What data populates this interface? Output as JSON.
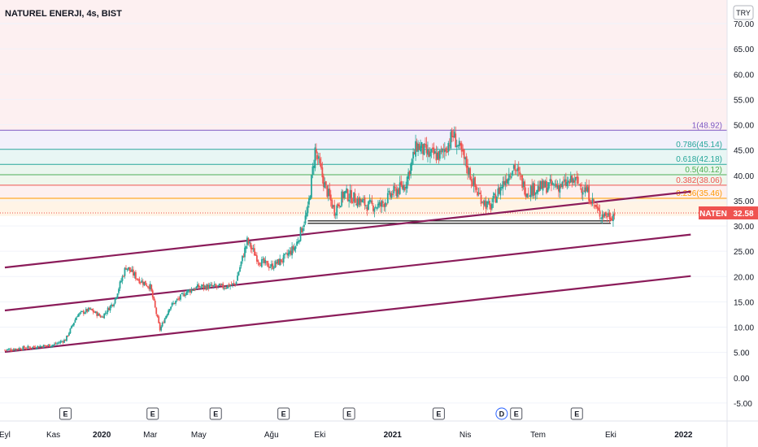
{
  "header": {
    "title": "NATUREL ENERJI, 4s, BIST",
    "currency": "TRY"
  },
  "colors": {
    "up": "#26a69a",
    "down": "#ef5350",
    "channel": "#8b1c5a",
    "fib_1": "#7e57c2",
    "fib_786": "#26a69a",
    "fib_618": "#26a69a",
    "fib_5": "#4caf50",
    "fib_382": "#ef5350",
    "fib_236": "#ff9800",
    "support": "#000000"
  },
  "chart_data": {
    "type": "candlestick",
    "symbol": "NATEN",
    "current_price": 32.58,
    "current_label": "32.58",
    "ylim": [
      -7.5,
      73
    ],
    "yticks": [
      "70.00",
      "65.00",
      "60.00",
      "55.00",
      "50.00",
      "45.00",
      "40.00",
      "35.00",
      "30.00",
      "25.00",
      "20.00",
      "15.00",
      "10.00",
      "5.00",
      "0.00",
      "-5.00"
    ],
    "ytick_values": [
      70,
      65,
      60,
      55,
      50,
      45,
      40,
      35,
      30,
      25,
      20,
      15,
      10,
      5,
      0,
      -5
    ],
    "xticks": [
      {
        "label": "Eyl",
        "month": 0,
        "bold": false
      },
      {
        "label": "Kas",
        "month": 2,
        "bold": false
      },
      {
        "label": "2020",
        "month": 4,
        "bold": true
      },
      {
        "label": "Mar",
        "month": 6,
        "bold": false
      },
      {
        "label": "May",
        "month": 8,
        "bold": false
      },
      {
        "label": "Ağu",
        "month": 11,
        "bold": false
      },
      {
        "label": "Eki",
        "month": 13,
        "bold": false
      },
      {
        "label": "2021",
        "month": 16,
        "bold": true
      },
      {
        "label": "Nis",
        "month": 19,
        "bold": false
      },
      {
        "label": "Tem",
        "month": 22,
        "bold": false
      },
      {
        "label": "Eki",
        "month": 25,
        "bold": false
      },
      {
        "label": "2022",
        "month": 28,
        "bold": true
      }
    ],
    "series_close": [
      [
        0,
        5.5
      ],
      [
        1,
        6.0
      ],
      [
        2,
        6.5
      ],
      [
        2.5,
        7.5
      ],
      [
        3,
        12.5
      ],
      [
        3.5,
        13.5
      ],
      [
        4,
        12.0
      ],
      [
        4.5,
        15.0
      ],
      [
        5,
        22.0
      ],
      [
        5.5,
        19.5
      ],
      [
        6,
        18.0
      ],
      [
        6.4,
        9.5
      ],
      [
        6.8,
        14.0
      ],
      [
        7.5,
        17.0
      ],
      [
        8,
        18.0
      ],
      [
        9,
        18.0
      ],
      [
        9.5,
        18.5
      ],
      [
        10,
        27.0
      ],
      [
        10.5,
        23.0
      ],
      [
        11,
        22.0
      ],
      [
        11.5,
        23.5
      ],
      [
        12,
        26.0
      ],
      [
        12.5,
        33.0
      ],
      [
        12.8,
        45.0
      ],
      [
        13.2,
        38.0
      ],
      [
        13.6,
        33.0
      ],
      [
        14,
        36.5
      ],
      [
        15,
        34.0
      ],
      [
        15.5,
        34.0
      ],
      [
        16,
        36.5
      ],
      [
        16.5,
        38.0
      ],
      [
        17,
        46.0
      ],
      [
        17.5,
        44.0
      ],
      [
        18,
        44.0
      ],
      [
        18.5,
        48.0
      ],
      [
        19,
        42.5
      ],
      [
        19.5,
        36.5
      ],
      [
        20,
        33.5
      ],
      [
        20.5,
        38.0
      ],
      [
        21,
        42.0
      ],
      [
        21.5,
        37.0
      ],
      [
        22,
        37.5
      ],
      [
        22.5,
        38.0
      ],
      [
        23,
        38.0
      ],
      [
        23.5,
        39.0
      ],
      [
        24,
        37.0
      ],
      [
        24.5,
        32.5
      ],
      [
        25,
        32.0
      ],
      [
        25.2,
        32.58
      ]
    ],
    "fibonacci": [
      {
        "level": "1",
        "value": 48.92,
        "label": "1(48.92)",
        "color_key": "fib_1"
      },
      {
        "level": "0.786",
        "value": 45.14,
        "label": "0.786(45.14)",
        "color_key": "fib_786"
      },
      {
        "level": "0.618",
        "value": 42.18,
        "label": "0.618(42.18)",
        "color_key": "fib_618"
      },
      {
        "level": "0.5",
        "value": 40.12,
        "label": "0.5(40.12)",
        "color_key": "fib_5"
      },
      {
        "level": "0.382",
        "value": 38.06,
        "label": "0.382(38.06)",
        "color_key": "fib_382"
      },
      {
        "level": "0.236",
        "value": 35.46,
        "label": "0.236(35.46)",
        "color_key": "fib_236"
      }
    ],
    "channels": [
      {
        "from": [
          0,
          21.8
        ],
        "to": [
          28.3,
          36.8
        ]
      },
      {
        "from": [
          0,
          13.3
        ],
        "to": [
          28.3,
          28.3
        ]
      },
      {
        "from": [
          0,
          5.1
        ],
        "to": [
          28.3,
          20.1
        ]
      }
    ],
    "support": {
      "value": 31.0,
      "from_month": 12.5,
      "to_month": 25.0
    },
    "events": [
      {
        "type": "E",
        "month": 2.5
      },
      {
        "type": "E",
        "month": 6.1
      },
      {
        "type": "E",
        "month": 8.7
      },
      {
        "type": "E",
        "month": 11.5
      },
      {
        "type": "E",
        "month": 14.2
      },
      {
        "type": "E",
        "month": 17.9
      },
      {
        "type": "D",
        "month": 20.5
      },
      {
        "type": "E",
        "month": 21.1
      },
      {
        "type": "E",
        "month": 23.6
      }
    ]
  }
}
